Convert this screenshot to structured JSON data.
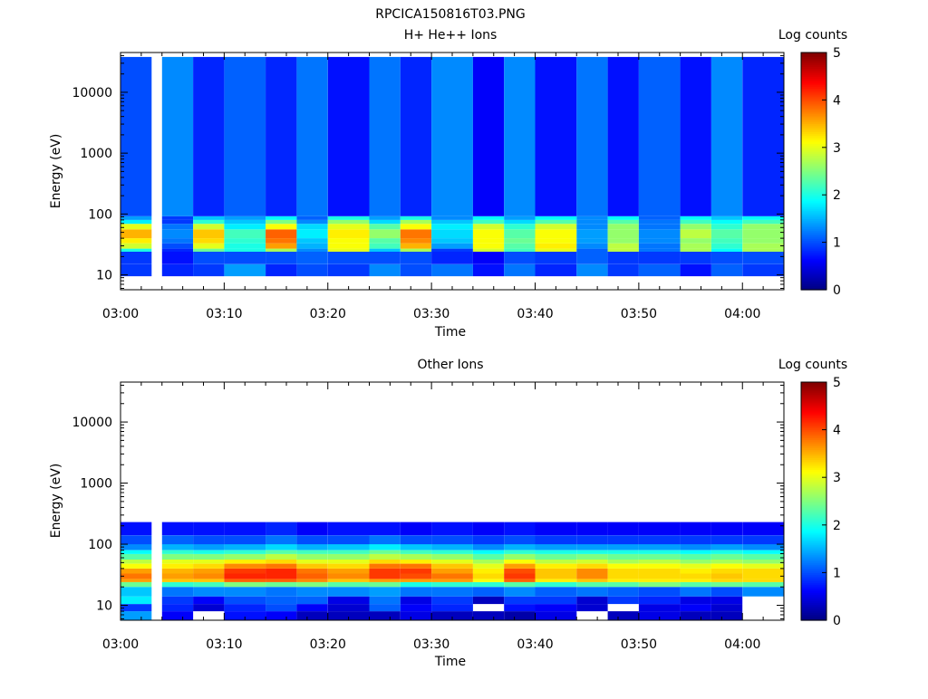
{
  "figure_title": "RPCICA150816T03.PNG",
  "chart_data": [
    {
      "type": "heatmap",
      "title": "H+ He++ Ions",
      "xlabel": "Time",
      "ylabel": "Energy (eV)",
      "x_tick_labels": [
        "03:00",
        "03:10",
        "03:20",
        "03:30",
        "03:40",
        "03:50",
        "04:00"
      ],
      "y_scale": "log",
      "y_tick_labels": [
        "10",
        "100",
        "1000",
        "10000"
      ],
      "ylim": [
        5.7,
        45000
      ],
      "grid": false,
      "colorbar": {
        "label": "Log counts",
        "range": [
          0,
          5
        ],
        "ticks": [
          "0",
          "1",
          "2",
          "3",
          "4",
          "5"
        ],
        "colormap": "jet"
      },
      "columns": [
        {
          "start": "03:00",
          "end": "03:03"
        },
        {
          "start": "03:04",
          "end": "03:07"
        },
        {
          "start": "03:07",
          "end": "03:10"
        },
        {
          "start": "03:10",
          "end": "03:14"
        },
        {
          "start": "03:14",
          "end": "03:17"
        },
        {
          "start": "03:17",
          "end": "03:20"
        },
        {
          "start": "03:20",
          "end": "03:24"
        },
        {
          "start": "03:24",
          "end": "03:27"
        },
        {
          "start": "03:27",
          "end": "03:30"
        },
        {
          "start": "03:30",
          "end": "03:34"
        },
        {
          "start": "03:34",
          "end": "03:37"
        },
        {
          "start": "03:37",
          "end": "03:40"
        },
        {
          "start": "03:40",
          "end": "03:44"
        },
        {
          "start": "03:44",
          "end": "03:47"
        },
        {
          "start": "03:47",
          "end": "03:50"
        },
        {
          "start": "03:50",
          "end": "03:54"
        },
        {
          "start": "03:54",
          "end": "03:57"
        },
        {
          "start": "03:57",
          "end": "04:00"
        },
        {
          "start": "04:00",
          "end": "04:04"
        }
      ],
      "energy_band_edges_eV": [
        9.5,
        15,
        24,
        27,
        33,
        40,
        56,
        69,
        80,
        92,
        38000
      ],
      "band_values": [
        [
          0.9,
          0.8,
          0.9,
          1.4,
          0.8,
          1.0,
          0.9,
          1.3,
          1.0,
          1.2,
          0.7,
          1.2,
          0.8,
          1.3,
          0.9,
          1.1,
          0.7,
          1.1,
          0.9
        ],
        [
          0.9,
          0.7,
          1.0,
          1.0,
          1.0,
          1.1,
          1.0,
          1.0,
          1.0,
          0.8,
          0.6,
          1.0,
          0.9,
          1.1,
          0.9,
          0.9,
          0.9,
          1.0,
          1.0
        ],
        [
          2.0,
          0.8,
          2.4,
          2.0,
          2.7,
          1.3,
          3.0,
          1.6,
          2.7,
          0.9,
          2.9,
          2.2,
          3.0,
          1.1,
          2.8,
          1.2,
          2.7,
          1.9,
          2.7
        ],
        [
          2.9,
          1.0,
          3.0,
          2.0,
          3.6,
          1.5,
          3.1,
          2.2,
          3.5,
          1.4,
          3.1,
          2.3,
          3.2,
          1.3,
          2.8,
          1.2,
          2.7,
          2.1,
          2.7
        ],
        [
          3.2,
          1.2,
          3.3,
          2.1,
          3.8,
          1.6,
          3.1,
          2.3,
          3.7,
          1.6,
          3.1,
          2.4,
          3.1,
          1.4,
          2.6,
          1.3,
          2.6,
          2.2,
          2.6
        ],
        [
          3.5,
          1.3,
          3.4,
          2.2,
          3.9,
          1.8,
          3.2,
          2.6,
          3.8,
          1.7,
          3.1,
          2.3,
          3.1,
          1.4,
          2.6,
          1.3,
          2.8,
          2.3,
          2.6
        ],
        [
          3.0,
          1.2,
          2.9,
          1.8,
          3.1,
          1.7,
          3.0,
          2.3,
          3.1,
          1.8,
          2.9,
          2.1,
          2.9,
          1.3,
          2.6,
          1.2,
          2.6,
          2.1,
          2.6
        ],
        [
          1.8,
          0.9,
          2.1,
          1.6,
          2.5,
          1.3,
          2.6,
          1.7,
          2.7,
          1.6,
          2.2,
          1.7,
          2.3,
          1.3,
          2.3,
          1.2,
          2.2,
          1.9,
          2.2
        ],
        [
          1.4,
          0.9,
          1.6,
          1.4,
          1.9,
          1.1,
          2.0,
          1.4,
          2.0,
          1.3,
          1.9,
          1.4,
          1.9,
          1.3,
          1.9,
          1.1,
          1.9,
          1.6,
          1.9
        ],
        [
          1.0,
          1.3,
          0.8,
          1.1,
          0.8,
          1.2,
          0.7,
          1.2,
          0.8,
          1.3,
          0.6,
          1.3,
          0.7,
          1.2,
          0.7,
          1.1,
          0.7,
          1.3,
          0.8
        ]
      ]
    },
    {
      "type": "heatmap",
      "title": "Other Ions",
      "xlabel": "Time",
      "ylabel": "Energy (eV)",
      "x_tick_labels": [
        "03:00",
        "03:10",
        "03:20",
        "03:30",
        "03:40",
        "03:50",
        "04:00"
      ],
      "y_scale": "log",
      "y_tick_labels": [
        "10",
        "100",
        "1000",
        "10000"
      ],
      "ylim": [
        5.7,
        45000
      ],
      "grid": false,
      "colorbar": {
        "label": "Log counts",
        "range": [
          0,
          5
        ],
        "ticks": [
          "0",
          "1",
          "2",
          "3",
          "4",
          "5"
        ],
        "colormap": "jet"
      },
      "columns": [
        {
          "start": "03:00",
          "end": "03:03"
        },
        {
          "start": "03:04",
          "end": "03:07"
        },
        {
          "start": "03:07",
          "end": "03:10"
        },
        {
          "start": "03:10",
          "end": "03:14"
        },
        {
          "start": "03:14",
          "end": "03:17"
        },
        {
          "start": "03:17",
          "end": "03:20"
        },
        {
          "start": "03:20",
          "end": "03:24"
        },
        {
          "start": "03:24",
          "end": "03:27"
        },
        {
          "start": "03:27",
          "end": "03:30"
        },
        {
          "start": "03:30",
          "end": "03:34"
        },
        {
          "start": "03:34",
          "end": "03:37"
        },
        {
          "start": "03:37",
          "end": "03:40"
        },
        {
          "start": "03:40",
          "end": "03:44"
        },
        {
          "start": "03:44",
          "end": "03:47"
        },
        {
          "start": "03:47",
          "end": "03:50"
        },
        {
          "start": "03:50",
          "end": "03:54"
        },
        {
          "start": "03:54",
          "end": "03:57"
        },
        {
          "start": "03:57",
          "end": "04:00"
        },
        {
          "start": "04:00",
          "end": "04:04"
        }
      ],
      "energy_band_edges_eV": [
        5.7,
        8,
        10.5,
        14,
        20,
        24,
        27,
        33,
        40,
        48,
        56,
        69,
        80,
        100,
        140,
        230
      ],
      "band_values": [
        [
          1.4,
          0.6,
          null,
          0.7,
          0.6,
          0.3,
          0.3,
          0.3,
          0.5,
          0.3,
          0.3,
          0.2,
          0.5,
          null,
          0.3,
          0.5,
          0.3,
          0.3,
          null
        ],
        [
          0.9,
          0.8,
          0.4,
          0.8,
          1.0,
          0.6,
          0.4,
          1.1,
          0.6,
          0.8,
          null,
          0.7,
          0.6,
          0.4,
          null,
          0.5,
          0.6,
          0.4,
          null
        ],
        [
          1.8,
          0.9,
          0.6,
          1.0,
          1.1,
          1.1,
          0.5,
          1.2,
          0.5,
          0.9,
          0.3,
          0.9,
          0.9,
          0.4,
          0.9,
          0.8,
          0.5,
          0.5,
          null
        ],
        [
          1.6,
          1.2,
          1.3,
          1.3,
          1.2,
          1.3,
          1.3,
          1.4,
          1.2,
          1.2,
          1.1,
          1.3,
          1.1,
          1.2,
          1.1,
          1.0,
          1.2,
          1.0,
          1.3
        ],
        [
          2.4,
          2.1,
          2.2,
          2.5,
          2.4,
          2.5,
          2.3,
          2.4,
          2.0,
          2.1,
          2.1,
          2.3,
          2.1,
          2.3,
          2.3,
          2.5,
          2.3,
          2.4,
          2.3
        ],
        [
          3.6,
          3.4,
          3.4,
          3.9,
          3.9,
          3.7,
          3.4,
          3.6,
          3.6,
          3.6,
          3.1,
          3.9,
          3.2,
          3.4,
          3.2,
          3.2,
          3.2,
          3.3,
          3.3
        ],
        [
          3.8,
          3.6,
          3.7,
          4.2,
          4.2,
          3.9,
          3.7,
          4.1,
          4.0,
          3.8,
          3.3,
          4.1,
          3.4,
          3.7,
          3.3,
          3.3,
          3.3,
          3.4,
          3.3
        ],
        [
          3.6,
          3.5,
          3.6,
          4.1,
          4.2,
          3.8,
          3.6,
          4.1,
          4.1,
          3.6,
          3.2,
          4.0,
          3.4,
          3.7,
          3.3,
          3.3,
          3.2,
          3.3,
          3.3
        ],
        [
          3.1,
          3.2,
          3.3,
          3.7,
          3.8,
          3.4,
          3.3,
          3.8,
          3.8,
          3.4,
          3.0,
          3.6,
          3.2,
          3.3,
          3.1,
          3.1,
          3.0,
          3.1,
          3.0
        ],
        [
          2.8,
          3.0,
          3.0,
          3.2,
          3.3,
          3.0,
          3.0,
          3.3,
          3.2,
          3.0,
          2.7,
          3.1,
          2.8,
          2.9,
          2.7,
          2.8,
          2.6,
          2.7,
          2.6
        ],
        [
          2.3,
          2.5,
          2.5,
          2.6,
          2.8,
          2.6,
          2.6,
          2.8,
          2.7,
          2.6,
          2.3,
          2.6,
          2.4,
          2.5,
          2.4,
          2.4,
          2.3,
          2.4,
          2.3
        ],
        [
          1.9,
          2.1,
          2.0,
          2.1,
          2.3,
          2.2,
          2.2,
          2.4,
          2.2,
          2.1,
          1.9,
          2.1,
          2.0,
          2.0,
          2.0,
          2.0,
          1.9,
          2.0,
          1.9
        ],
        [
          1.3,
          1.5,
          1.4,
          1.5,
          1.7,
          1.5,
          1.6,
          1.8,
          1.6,
          1.5,
          1.3,
          1.5,
          1.4,
          1.4,
          1.4,
          1.4,
          1.3,
          1.4,
          1.3
        ],
        [
          1.0,
          1.1,
          1.0,
          1.0,
          1.2,
          1.0,
          1.0,
          1.2,
          1.0,
          1.0,
          0.9,
          1.0,
          0.9,
          0.9,
          0.9,
          0.9,
          0.9,
          0.9,
          0.9
        ],
        [
          0.7,
          0.7,
          0.7,
          0.7,
          0.8,
          0.6,
          0.7,
          0.7,
          0.6,
          0.7,
          0.6,
          0.7,
          0.6,
          0.6,
          0.6,
          0.6,
          0.6,
          0.6,
          0.6
        ]
      ]
    }
  ]
}
